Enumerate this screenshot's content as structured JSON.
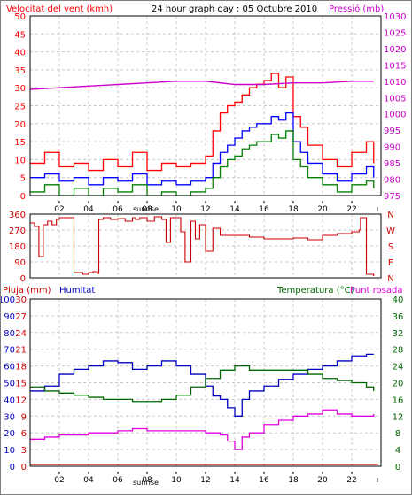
{
  "colors": {
    "wind": "#ff0000",
    "wind_avg": "#0000ff",
    "wind_min": "#008000",
    "pressure": "#cc00cc",
    "dir": "#cc0000",
    "humidity": "#0000c0",
    "temperature": "#006600",
    "dewpoint": "#e000e0",
    "rain": "#cc0000",
    "grid": "#c8c8c8"
  },
  "header": {
    "wind_label": "Velocitat del vent (kmh)",
    "title": "24 hour graph day : 05 Octubre 2010",
    "pressure_label": "Pressió (mb)"
  },
  "x_axis": {
    "ticks": [
      "02",
      "04",
      "06",
      "08",
      "10",
      "12",
      "14",
      "16",
      "18",
      "20",
      "22"
    ],
    "sunrise_label": "sunrise"
  },
  "chart_data": [
    {
      "type": "line",
      "name": "wind",
      "x_range": [
        0,
        24
      ],
      "ylim": [
        0,
        50
      ],
      "y_ticks": [
        0,
        5,
        10,
        15,
        20,
        25,
        30,
        35,
        40,
        45,
        50
      ],
      "y2lim": [
        975,
        1030
      ],
      "y2_ticks": [
        975,
        980,
        985,
        990,
        995,
        1000,
        1005,
        1010,
        1015,
        1020,
        1025,
        1030
      ],
      "series": [
        {
          "name": "Velocitat del vent (kmh)",
          "axis": "left",
          "x": [
            0,
            1,
            2,
            3,
            4,
            5,
            6,
            7,
            8,
            9,
            10,
            11,
            12,
            12.5,
            13,
            13.5,
            14,
            14.5,
            15,
            15.5,
            16,
            16.5,
            17,
            17.5,
            18,
            18.5,
            19,
            20,
            21,
            22,
            23,
            23.5
          ],
          "values": [
            9,
            12,
            8,
            9,
            7,
            10,
            8,
            12,
            7,
            9,
            8,
            9,
            11,
            18,
            23,
            25,
            26,
            28,
            30,
            31,
            32,
            34,
            30,
            33,
            22,
            19,
            14,
            10,
            8,
            12,
            15,
            9
          ]
        },
        {
          "name": "wind average",
          "axis": "left",
          "x": [
            0,
            1,
            2,
            3,
            4,
            5,
            6,
            7,
            8,
            9,
            10,
            11,
            12,
            12.5,
            13,
            13.5,
            14,
            14.5,
            15,
            15.5,
            16,
            16.5,
            17,
            17.5,
            18,
            18.5,
            19,
            20,
            21,
            22,
            23,
            23.5
          ],
          "values": [
            5,
            6,
            4,
            5,
            3,
            5,
            4,
            6,
            3,
            4,
            3,
            4,
            5,
            9,
            12,
            14,
            16,
            18,
            19,
            20,
            20,
            22,
            21,
            23,
            15,
            12,
            9,
            6,
            4,
            6,
            8,
            5
          ]
        },
        {
          "name": "wind minimum",
          "axis": "left",
          "x": [
            0,
            1,
            2,
            3,
            4,
            5,
            6,
            7,
            8,
            9,
            10,
            11,
            12,
            12.5,
            13,
            13.5,
            14,
            14.5,
            15,
            15.5,
            16,
            16.5,
            17,
            17.5,
            18,
            18.5,
            19,
            20,
            21,
            22,
            23,
            23.5
          ],
          "values": [
            1,
            3,
            0,
            2,
            0,
            2,
            1,
            3,
            0,
            1,
            0,
            1,
            2,
            5,
            8,
            10,
            11,
            13,
            14,
            15,
            15,
            17,
            16,
            18,
            10,
            8,
            5,
            3,
            1,
            3,
            4,
            2
          ]
        },
        {
          "name": "Pressió (mb)",
          "axis": "right",
          "x": [
            0,
            2,
            4,
            6,
            8,
            10,
            12,
            14,
            16,
            18,
            20,
            22,
            23.5
          ],
          "values": [
            1007.5,
            1008,
            1008.5,
            1009,
            1009.5,
            1010,
            1010,
            1009,
            1009,
            1009.5,
            1009.5,
            1010,
            1010
          ]
        }
      ]
    },
    {
      "type": "line",
      "name": "wind direction",
      "x_range": [
        0,
        24
      ],
      "ylim": [
        0,
        360
      ],
      "y_ticks": [
        0,
        90,
        180,
        270,
        360
      ],
      "y2_labels": [
        "N",
        "E",
        "S",
        "W",
        "N"
      ],
      "series": [
        {
          "name": "wind direction",
          "x": [
            0,
            0.3,
            0.6,
            0.9,
            1.2,
            1.5,
            1.8,
            2.0,
            2.2,
            3.0,
            3.3,
            3.6,
            4.0,
            4.3,
            4.6,
            4.7,
            5.0,
            5.5,
            6.0,
            6.5,
            7.0,
            7.2,
            7.5,
            8.0,
            8.5,
            9.0,
            9.3,
            9.6,
            10.0,
            10.3,
            10.6,
            11.0,
            11.3,
            11.6,
            12.0,
            12.5,
            13.0,
            14.0,
            15.0,
            16.0,
            17.0,
            18.0,
            19.0,
            20.0,
            21.0,
            22.0,
            22.5,
            22.6,
            23.0,
            23.5
          ],
          "values": [
            310,
            290,
            120,
            300,
            320,
            300,
            330,
            340,
            340,
            30,
            30,
            20,
            30,
            35,
            25,
            330,
            340,
            330,
            335,
            320,
            340,
            330,
            340,
            320,
            345,
            330,
            200,
            340,
            340,
            260,
            90,
            320,
            220,
            300,
            150,
            280,
            240,
            240,
            230,
            220,
            220,
            225,
            215,
            240,
            250,
            260,
            270,
            340,
            20,
            10
          ]
        }
      ]
    },
    {
      "type": "line",
      "name": "humidity temperature",
      "x_range": [
        0,
        24
      ],
      "ylim": [
        0,
        100
      ],
      "y_ticks": [
        0,
        10,
        20,
        30,
        40,
        50,
        60,
        70,
        80,
        90,
        100
      ],
      "y_ticks_rain": [
        0,
        3,
        6,
        9,
        12,
        15,
        18,
        21,
        24,
        27,
        30
      ],
      "y2lim": [
        0,
        40
      ],
      "y2_ticks": [
        0,
        4,
        8,
        12,
        16,
        20,
        24,
        28,
        32,
        36,
        40
      ],
      "series": [
        {
          "name": "Humitat",
          "axis": "left",
          "x": [
            0,
            1,
            2,
            3,
            4,
            5,
            6,
            7,
            8,
            9,
            10,
            11,
            12,
            12.5,
            13,
            13.5,
            14,
            14.5,
            15,
            16,
            17,
            18,
            19,
            20,
            21,
            22,
            23,
            23.5
          ],
          "values": [
            45,
            48,
            55,
            58,
            60,
            63,
            62,
            58,
            60,
            63,
            60,
            55,
            48,
            42,
            40,
            35,
            30,
            40,
            45,
            48,
            52,
            55,
            58,
            60,
            63,
            66,
            67,
            67
          ]
        },
        {
          "name": "Temperatura (°C)",
          "axis": "right",
          "x": [
            0,
            1,
            2,
            3,
            4,
            5,
            6,
            7,
            8,
            9,
            10,
            11,
            12,
            13,
            14,
            15,
            16,
            17,
            18,
            19,
            20,
            21,
            22,
            23,
            23.5
          ],
          "values": [
            19,
            18,
            17.5,
            17,
            16.5,
            16,
            16,
            15.5,
            15.5,
            16,
            17,
            19,
            21,
            23,
            24,
            23,
            23,
            23,
            23,
            22,
            21,
            20.5,
            20,
            19,
            18
          ]
        },
        {
          "name": "Punt rosada",
          "axis": "right",
          "x": [
            0,
            1,
            2,
            3,
            4,
            5,
            6,
            7,
            8,
            9,
            10,
            11,
            12,
            13,
            13.5,
            14,
            14.5,
            15,
            16,
            17,
            18,
            19,
            20,
            21,
            22,
            23,
            23.5
          ],
          "values": [
            6.5,
            7,
            7.5,
            7.5,
            8,
            8,
            8.5,
            9,
            8.5,
            8.5,
            8.5,
            8.5,
            8,
            7.5,
            6,
            4,
            7,
            8,
            10,
            11,
            12,
            12.5,
            13.5,
            12.5,
            12,
            12,
            12.5
          ]
        },
        {
          "name": "Pluja (mm)",
          "axis": "rain",
          "x": [
            0,
            23.8
          ],
          "values": [
            0,
            0
          ]
        }
      ]
    }
  ],
  "panel3": {
    "rain_label": "Pluja (mm)",
    "humidity_label": "Humitat",
    "temp_label": "Temperatura (°C)",
    "dew_label": "Punt rosada"
  }
}
